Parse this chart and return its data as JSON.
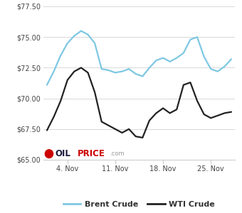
{
  "brent_x": [
    0,
    1,
    2,
    3,
    4,
    5,
    6,
    7,
    8,
    9,
    10,
    11,
    12,
    13,
    14,
    15,
    16,
    17,
    18,
    19,
    20,
    21,
    22,
    23,
    24,
    25,
    26,
    27
  ],
  "brent_y": [
    71.1,
    72.2,
    73.5,
    74.5,
    75.1,
    75.5,
    75.2,
    74.5,
    72.4,
    72.3,
    72.1,
    72.2,
    72.4,
    72.0,
    71.8,
    72.5,
    73.1,
    73.3,
    73.0,
    73.3,
    73.7,
    74.8,
    75.0,
    73.4,
    72.4,
    72.2,
    72.6,
    73.2
  ],
  "wti_x": [
    0,
    1,
    2,
    3,
    4,
    5,
    6,
    7,
    8,
    9,
    10,
    11,
    12,
    13,
    14,
    15,
    16,
    17,
    18,
    19,
    20,
    21,
    22,
    23,
    24,
    25,
    26,
    27
  ],
  "wti_y": [
    67.4,
    68.5,
    69.8,
    71.5,
    72.2,
    72.5,
    72.1,
    70.5,
    68.1,
    67.8,
    67.5,
    67.2,
    67.5,
    66.9,
    66.8,
    68.2,
    68.8,
    69.2,
    68.8,
    69.1,
    71.1,
    71.3,
    69.8,
    68.7,
    68.4,
    68.6,
    68.8,
    68.9
  ],
  "brent_color": "#7ec8e3",
  "wti_color": "#222222",
  "ylim_min": 65.0,
  "ylim_max": 77.5,
  "yticks": [
    65.0,
    67.5,
    70.0,
    72.5,
    75.0,
    77.5
  ],
  "xtick_positions": [
    3,
    10,
    17,
    24
  ],
  "xtick_labels": [
    "4. Nov",
    "11. Nov",
    "18. Nov",
    "25. Nov"
  ],
  "background_color": "#ffffff",
  "grid_color": "#d8d8d8",
  "brent_label": "Brent Crude",
  "wti_label": "WTI Crude"
}
